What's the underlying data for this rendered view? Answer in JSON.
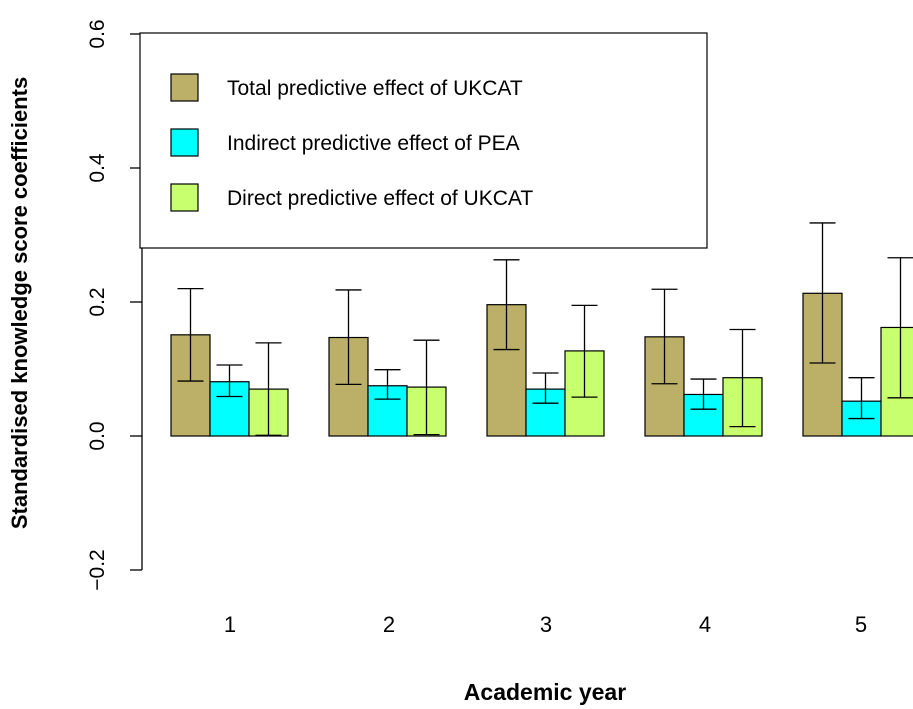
{
  "chart_data": {
    "type": "bar",
    "title": "",
    "xlabel": "Academic year",
    "ylabel": "Standardised knowledge score coefficients",
    "ylim": [
      -0.2,
      0.6
    ],
    "yticks": [
      "−0.2",
      "0.0",
      "0.2",
      "0.4",
      "0.6"
    ],
    "categories": [
      "1",
      "2",
      "3",
      "4",
      "5"
    ],
    "grid": false,
    "legend_position": "top-left",
    "series": [
      {
        "name": "Total predictive effect of UKCAT",
        "color": "#bcb068",
        "values": [
          0.151,
          0.147,
          0.196,
          0.148,
          0.213
        ],
        "err_low": [
          0.082,
          0.077,
          0.129,
          0.078,
          0.109
        ],
        "err_high": [
          0.22,
          0.218,
          0.263,
          0.219,
          0.318
        ]
      },
      {
        "name": "Indirect predictive effect of PEA",
        "color": "#00ffff",
        "values": [
          0.081,
          0.075,
          0.07,
          0.062,
          0.052
        ],
        "err_low": [
          0.059,
          0.055,
          0.049,
          0.04,
          0.026
        ],
        "err_high": [
          0.106,
          0.099,
          0.094,
          0.085,
          0.087
        ]
      },
      {
        "name": "Direct predictive effect of UKCAT",
        "color": "#c8ff6e",
        "values": [
          0.07,
          0.073,
          0.127,
          0.087,
          0.162
        ],
        "err_low": [
          0.001,
          0.002,
          0.058,
          0.014,
          0.057
        ],
        "err_high": [
          0.139,
          0.143,
          0.195,
          0.159,
          0.266
        ]
      }
    ]
  }
}
